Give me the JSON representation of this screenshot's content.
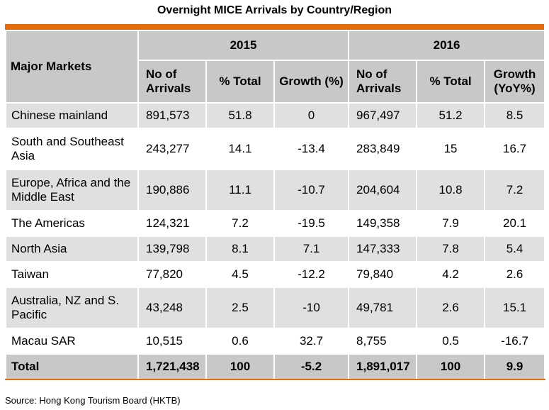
{
  "title": "Overnight MICE Arrivals by Country/Region",
  "source": "Source: Hong Kong Tourism Board (HKTB)",
  "colors": {
    "accent": "#e46c0a",
    "header_bg": "#c8c8c8",
    "row_shade": "#e0e0e0"
  },
  "chart_data": {
    "type": "table",
    "title": "Overnight MICE Arrivals by Country/Region",
    "header": {
      "market_label": "Major Markets",
      "years": [
        "2015",
        "2016"
      ],
      "columns": [
        "No of Arrivals",
        "% Total",
        "Growth (%)",
        "No of Arrivals",
        "% Total",
        "Growth (YoY%)"
      ]
    },
    "rows": [
      {
        "market": "Chinese mainland",
        "values": [
          "891,573",
          "51.8",
          "0",
          "967,497",
          "51.2",
          "8.5"
        ]
      },
      {
        "market": "South and Southeast Asia",
        "values": [
          "243,277",
          "14.1",
          "-13.4",
          "283,849",
          "15",
          "16.7"
        ]
      },
      {
        "market": "Europe, Africa and the Middle East",
        "values": [
          "190,886",
          "11.1",
          "-10.7",
          "204,604",
          "10.8",
          "7.2"
        ]
      },
      {
        "market": "The Americas",
        "values": [
          "124,321",
          "7.2",
          "-19.5",
          "149,358",
          "7.9",
          "20.1"
        ]
      },
      {
        "market": "North Asia",
        "values": [
          "139,798",
          "8.1",
          "7.1",
          "147,333",
          "7.8",
          "5.4"
        ]
      },
      {
        "market": "Taiwan",
        "values": [
          "77,820",
          "4.5",
          "-12.2",
          "79,840",
          "4.2",
          "2.6"
        ]
      },
      {
        "market": "Australia, NZ and S. Pacific",
        "values": [
          "43,248",
          "2.5",
          "-10",
          "49,781",
          "2.6",
          "15.1"
        ]
      },
      {
        "market": "Macau SAR",
        "values": [
          "10,515",
          "0.6",
          "32.7",
          "8,755",
          "0.5",
          "-16.7"
        ]
      }
    ],
    "total": {
      "market": "Total",
      "values": [
        "1,721,438",
        "100",
        "-5.2",
        "1,891,017",
        "100",
        "9.9"
      ]
    }
  }
}
